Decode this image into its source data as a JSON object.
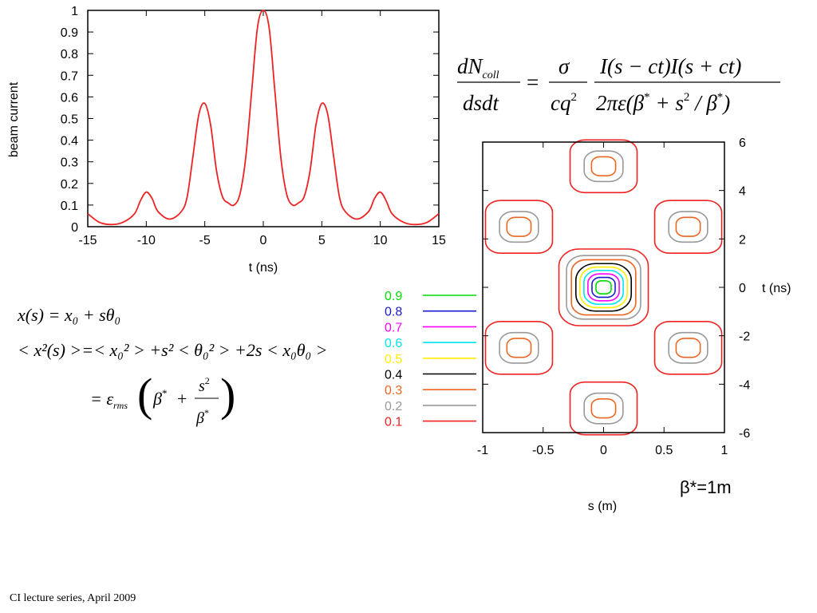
{
  "footer": "CI lecture series, April 2009",
  "beta_label": "β*=1m",
  "formula_top": {
    "lhs_num": "dN",
    "lhs_num_sub": "coll",
    "lhs_den": "dsdt",
    "eq": "=",
    "frac1_num": "σ",
    "frac1_den": "cq",
    "frac1_den_sup": "2",
    "frac2_num": "I(s − ct)I(s + ct)",
    "frac2_den_a": "2πε(β",
    "frac2_den_star1": "*",
    "frac2_den_b": " + s",
    "frac2_den_sup2": "2",
    "frac2_den_c": " / β",
    "frac2_den_star2": "*",
    "frac2_den_d": ")"
  },
  "formula_left": {
    "line1": "x(s) = x₀ + sθ₀",
    "line2": "< x²(s) >=< x₀² > +s² < θ₀² > +2s < x₀θ₀ >",
    "line3_eq": "= ε",
    "line3_sub": "rms",
    "line3_beta": "β",
    "line3_star": "*",
    "line3_plus": "+",
    "line3_num": "s",
    "line3_num_sup": "2",
    "line3_den": "β",
    "line3_den_star": "*"
  },
  "colors": {
    "curve": "#ee2222",
    "axis": "#000000",
    "levels": [
      "#ee2222",
      "#999999",
      "#ee6622",
      "#000000",
      "#ffee00",
      "#00e5ee",
      "#ff00ff",
      "#1a1ad0",
      "#00dd00"
    ]
  },
  "chart_data": [
    {
      "type": "line",
      "xlabel": "t (ns)",
      "ylabel": "beam current",
      "xlim": [
        -15,
        15
      ],
      "ylim": [
        0,
        1
      ],
      "xticks": [
        "-15",
        "-10",
        "-5",
        "0",
        "5",
        "10",
        "15"
      ],
      "yticks": [
        "0",
        "0.1",
        "0.2",
        "0.3",
        "0.4",
        "0.5",
        "0.6",
        "0.7",
        "0.8",
        "0.9",
        "1"
      ],
      "series": [
        {
          "x": [
            -15,
            -14,
            -13,
            -12,
            -11,
            -10.5,
            -10,
            -9.5,
            -9,
            -8,
            -7,
            -6.5,
            -6,
            -5.5,
            -5,
            -4.5,
            -4,
            -3.5,
            -3,
            -2.5,
            -2,
            -1.5,
            -1,
            -0.5,
            0,
            0.5,
            1,
            1.5,
            2,
            2.5,
            3,
            3.5,
            4,
            4.5,
            5,
            5.5,
            6,
            6.5,
            7,
            8,
            9,
            9.5,
            10,
            10.5,
            11,
            12,
            13,
            14,
            15
          ],
          "y": [
            0.06,
            0.02,
            0.01,
            0.02,
            0.06,
            0.12,
            0.16,
            0.13,
            0.07,
            0.035,
            0.07,
            0.14,
            0.33,
            0.52,
            0.57,
            0.47,
            0.26,
            0.14,
            0.11,
            0.1,
            0.15,
            0.32,
            0.62,
            0.92,
            1.0,
            0.92,
            0.62,
            0.32,
            0.15,
            0.1,
            0.11,
            0.14,
            0.26,
            0.47,
            0.57,
            0.52,
            0.33,
            0.14,
            0.07,
            0.035,
            0.07,
            0.13,
            0.16,
            0.12,
            0.06,
            0.02,
            0.01,
            0.02,
            0.06
          ]
        }
      ]
    },
    {
      "type": "contour",
      "xlabel": "s (m)",
      "ylabel": "t (ns)",
      "xlim": [
        -1,
        1
      ],
      "ylim": [
        -6,
        6
      ],
      "xticks": [
        "-1",
        "-0.5",
        "0",
        "0.5",
        "1"
      ],
      "yticks": [
        "-6",
        "-4",
        "-2",
        "0",
        "2",
        "4",
        "6"
      ],
      "levels": [
        "0.9",
        "0.8",
        "0.7",
        "0.6",
        "0.5",
        "0.4",
        "0.3",
        "0.2",
        "0.1"
      ],
      "islands": [
        {
          "s": 0,
          "t": 0,
          "levels": [
            "0.1",
            "0.2",
            "0.3",
            "0.4",
            "0.5",
            "0.6",
            "0.7",
            "0.8",
            "0.9"
          ]
        },
        {
          "s": 0,
          "t": 5,
          "levels": [
            "0.1",
            "0.2",
            "0.3"
          ]
        },
        {
          "s": 0,
          "t": -5,
          "levels": [
            "0.1",
            "0.2",
            "0.3"
          ]
        },
        {
          "s": -0.7,
          "t": 2.5,
          "levels": [
            "0.1",
            "0.2",
            "0.3"
          ]
        },
        {
          "s": 0.7,
          "t": 2.5,
          "levels": [
            "0.1",
            "0.2",
            "0.3"
          ]
        },
        {
          "s": -0.7,
          "t": -2.5,
          "levels": [
            "0.1",
            "0.2",
            "0.3"
          ]
        },
        {
          "s": 0.7,
          "t": -2.5,
          "levels": [
            "0.1",
            "0.2",
            "0.3"
          ]
        }
      ]
    }
  ]
}
